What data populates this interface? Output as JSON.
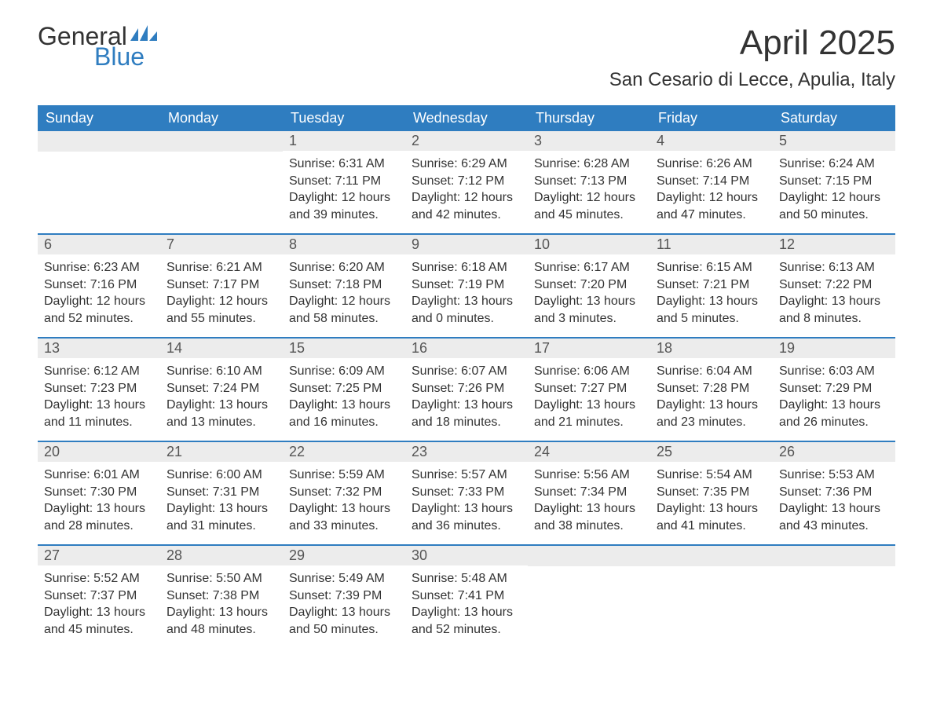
{
  "brand": {
    "word1": "General",
    "word2": "Blue"
  },
  "title": "April 2025",
  "location": "San Cesario di Lecce, Apulia, Italy",
  "colors": {
    "accent": "#2f7dc0",
    "daynum_bg": "#ececec",
    "text": "#333333",
    "bg": "#ffffff"
  },
  "weekdays": [
    "Sunday",
    "Monday",
    "Tuesday",
    "Wednesday",
    "Thursday",
    "Friday",
    "Saturday"
  ],
  "weeks": [
    [
      {
        "num": "",
        "sunrise": "",
        "sunset": "",
        "daylight": ""
      },
      {
        "num": "",
        "sunrise": "",
        "sunset": "",
        "daylight": ""
      },
      {
        "num": "1",
        "sunrise": "Sunrise: 6:31 AM",
        "sunset": "Sunset: 7:11 PM",
        "daylight": "Daylight: 12 hours and 39 minutes."
      },
      {
        "num": "2",
        "sunrise": "Sunrise: 6:29 AM",
        "sunset": "Sunset: 7:12 PM",
        "daylight": "Daylight: 12 hours and 42 minutes."
      },
      {
        "num": "3",
        "sunrise": "Sunrise: 6:28 AM",
        "sunset": "Sunset: 7:13 PM",
        "daylight": "Daylight: 12 hours and 45 minutes."
      },
      {
        "num": "4",
        "sunrise": "Sunrise: 6:26 AM",
        "sunset": "Sunset: 7:14 PM",
        "daylight": "Daylight: 12 hours and 47 minutes."
      },
      {
        "num": "5",
        "sunrise": "Sunrise: 6:24 AM",
        "sunset": "Sunset: 7:15 PM",
        "daylight": "Daylight: 12 hours and 50 minutes."
      }
    ],
    [
      {
        "num": "6",
        "sunrise": "Sunrise: 6:23 AM",
        "sunset": "Sunset: 7:16 PM",
        "daylight": "Daylight: 12 hours and 52 minutes."
      },
      {
        "num": "7",
        "sunrise": "Sunrise: 6:21 AM",
        "sunset": "Sunset: 7:17 PM",
        "daylight": "Daylight: 12 hours and 55 minutes."
      },
      {
        "num": "8",
        "sunrise": "Sunrise: 6:20 AM",
        "sunset": "Sunset: 7:18 PM",
        "daylight": "Daylight: 12 hours and 58 minutes."
      },
      {
        "num": "9",
        "sunrise": "Sunrise: 6:18 AM",
        "sunset": "Sunset: 7:19 PM",
        "daylight": "Daylight: 13 hours and 0 minutes."
      },
      {
        "num": "10",
        "sunrise": "Sunrise: 6:17 AM",
        "sunset": "Sunset: 7:20 PM",
        "daylight": "Daylight: 13 hours and 3 minutes."
      },
      {
        "num": "11",
        "sunrise": "Sunrise: 6:15 AM",
        "sunset": "Sunset: 7:21 PM",
        "daylight": "Daylight: 13 hours and 5 minutes."
      },
      {
        "num": "12",
        "sunrise": "Sunrise: 6:13 AM",
        "sunset": "Sunset: 7:22 PM",
        "daylight": "Daylight: 13 hours and 8 minutes."
      }
    ],
    [
      {
        "num": "13",
        "sunrise": "Sunrise: 6:12 AM",
        "sunset": "Sunset: 7:23 PM",
        "daylight": "Daylight: 13 hours and 11 minutes."
      },
      {
        "num": "14",
        "sunrise": "Sunrise: 6:10 AM",
        "sunset": "Sunset: 7:24 PM",
        "daylight": "Daylight: 13 hours and 13 minutes."
      },
      {
        "num": "15",
        "sunrise": "Sunrise: 6:09 AM",
        "sunset": "Sunset: 7:25 PM",
        "daylight": "Daylight: 13 hours and 16 minutes."
      },
      {
        "num": "16",
        "sunrise": "Sunrise: 6:07 AM",
        "sunset": "Sunset: 7:26 PM",
        "daylight": "Daylight: 13 hours and 18 minutes."
      },
      {
        "num": "17",
        "sunrise": "Sunrise: 6:06 AM",
        "sunset": "Sunset: 7:27 PM",
        "daylight": "Daylight: 13 hours and 21 minutes."
      },
      {
        "num": "18",
        "sunrise": "Sunrise: 6:04 AM",
        "sunset": "Sunset: 7:28 PM",
        "daylight": "Daylight: 13 hours and 23 minutes."
      },
      {
        "num": "19",
        "sunrise": "Sunrise: 6:03 AM",
        "sunset": "Sunset: 7:29 PM",
        "daylight": "Daylight: 13 hours and 26 minutes."
      }
    ],
    [
      {
        "num": "20",
        "sunrise": "Sunrise: 6:01 AM",
        "sunset": "Sunset: 7:30 PM",
        "daylight": "Daylight: 13 hours and 28 minutes."
      },
      {
        "num": "21",
        "sunrise": "Sunrise: 6:00 AM",
        "sunset": "Sunset: 7:31 PM",
        "daylight": "Daylight: 13 hours and 31 minutes."
      },
      {
        "num": "22",
        "sunrise": "Sunrise: 5:59 AM",
        "sunset": "Sunset: 7:32 PM",
        "daylight": "Daylight: 13 hours and 33 minutes."
      },
      {
        "num": "23",
        "sunrise": "Sunrise: 5:57 AM",
        "sunset": "Sunset: 7:33 PM",
        "daylight": "Daylight: 13 hours and 36 minutes."
      },
      {
        "num": "24",
        "sunrise": "Sunrise: 5:56 AM",
        "sunset": "Sunset: 7:34 PM",
        "daylight": "Daylight: 13 hours and 38 minutes."
      },
      {
        "num": "25",
        "sunrise": "Sunrise: 5:54 AM",
        "sunset": "Sunset: 7:35 PM",
        "daylight": "Daylight: 13 hours and 41 minutes."
      },
      {
        "num": "26",
        "sunrise": "Sunrise: 5:53 AM",
        "sunset": "Sunset: 7:36 PM",
        "daylight": "Daylight: 13 hours and 43 minutes."
      }
    ],
    [
      {
        "num": "27",
        "sunrise": "Sunrise: 5:52 AM",
        "sunset": "Sunset: 7:37 PM",
        "daylight": "Daylight: 13 hours and 45 minutes."
      },
      {
        "num": "28",
        "sunrise": "Sunrise: 5:50 AM",
        "sunset": "Sunset: 7:38 PM",
        "daylight": "Daylight: 13 hours and 48 minutes."
      },
      {
        "num": "29",
        "sunrise": "Sunrise: 5:49 AM",
        "sunset": "Sunset: 7:39 PM",
        "daylight": "Daylight: 13 hours and 50 minutes."
      },
      {
        "num": "30",
        "sunrise": "Sunrise: 5:48 AM",
        "sunset": "Sunset: 7:41 PM",
        "daylight": "Daylight: 13 hours and 52 minutes."
      },
      {
        "num": "",
        "sunrise": "",
        "sunset": "",
        "daylight": ""
      },
      {
        "num": "",
        "sunrise": "",
        "sunset": "",
        "daylight": ""
      },
      {
        "num": "",
        "sunrise": "",
        "sunset": "",
        "daylight": ""
      }
    ]
  ]
}
